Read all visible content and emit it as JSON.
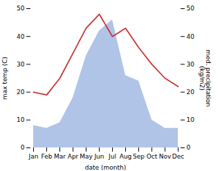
{
  "chart_data": {
    "type": "line",
    "categories": [
      "Jan",
      "Feb",
      "Mar",
      "Apr",
      "May",
      "Jun",
      "Jul",
      "Aug",
      "Sep",
      "Oct",
      "Nov",
      "Dec"
    ],
    "series": [
      {
        "type": "area",
        "axis": "y2",
        "color": "#b0c4e8",
        "values": [
          8,
          7,
          9,
          18,
          33,
          42,
          46,
          26,
          24,
          10,
          7,
          7
        ]
      },
      {
        "type": "line",
        "color": "#cc3333",
        "values": [
          20,
          19,
          25,
          34,
          43,
          48,
          40,
          43,
          36,
          30,
          25,
          22
        ]
      }
    ],
    "xlabel": "date (month)",
    "ylabel": "max temp (C)",
    "y2label": "med. precipitation\n(kg/m2)",
    "ylim": [
      0,
      50
    ],
    "yticks": [
      0,
      10,
      20,
      30,
      40,
      50
    ],
    "y2lim": [
      0,
      50
    ],
    "y2ticks": [
      0,
      10,
      20,
      30,
      40,
      50
    ],
    "grid": false
  }
}
